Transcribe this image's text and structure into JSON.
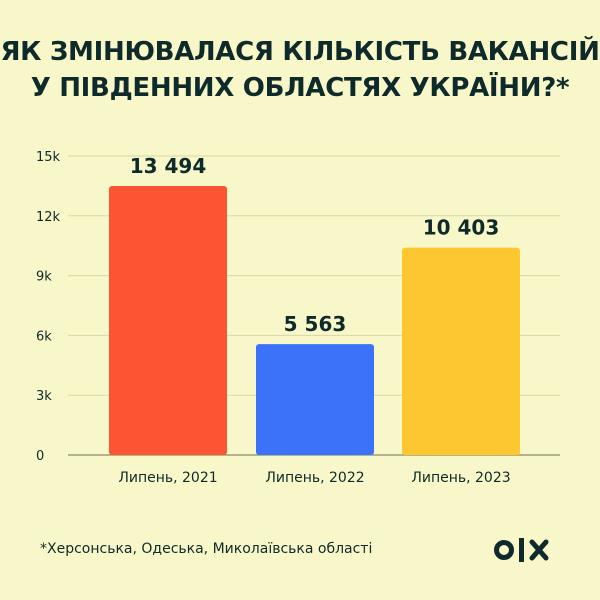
{
  "title_line1": "ЯК ЗМІНЮВАЛАСЯ КІЛЬКІСТЬ ВАКАНСІЙ",
  "title_line2": "У ПІВДЕННИХ ОБЛАСТЯХ УКРАЇНИ?*",
  "footnote": "*Херсонська, Одеська, Миколаївська області",
  "logo_text": "OLX",
  "colors": {
    "background": "#f8f7c9",
    "text": "#0f2a2a",
    "gridline": "#d8d7a8"
  },
  "chart_data": {
    "type": "bar",
    "categories": [
      "Липень, 2021",
      "Липень, 2022",
      "Липень, 2023"
    ],
    "values": [
      13494,
      5563,
      10403
    ],
    "data_labels": [
      "13 494",
      "5 563",
      "10 403"
    ],
    "bar_colors": [
      "#fd5433",
      "#3c72fa",
      "#fdc732"
    ],
    "ylim": [
      0,
      15000
    ],
    "yticks": [
      0,
      3000,
      6000,
      9000,
      12000,
      15000
    ],
    "ytick_labels": [
      "0",
      "3k",
      "6k",
      "9k",
      "12k",
      "15k"
    ],
    "grid": true
  }
}
